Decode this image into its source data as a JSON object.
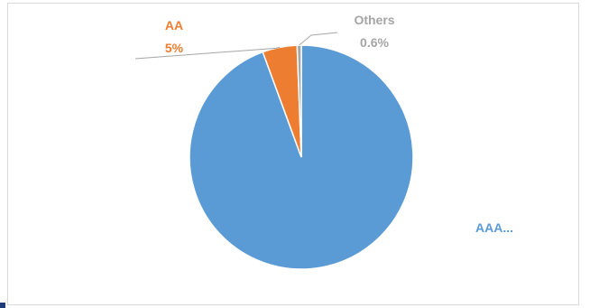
{
  "chart_data": {
    "type": "pie",
    "title": "",
    "slices": [
      {
        "name": "AAA",
        "label_text": "AAA...",
        "value_text": "",
        "value": 94.4,
        "color": "#5b9bd5"
      },
      {
        "name": "AA",
        "label_text": "AA",
        "value_text": "5%",
        "value": 5.0,
        "color": "#ed7d31"
      },
      {
        "name": "Others",
        "label_text": "Others",
        "value_text": "0.6%",
        "value": 0.6,
        "color": "#a5a5a5"
      }
    ],
    "legend": "none",
    "data_labels": "outside"
  }
}
